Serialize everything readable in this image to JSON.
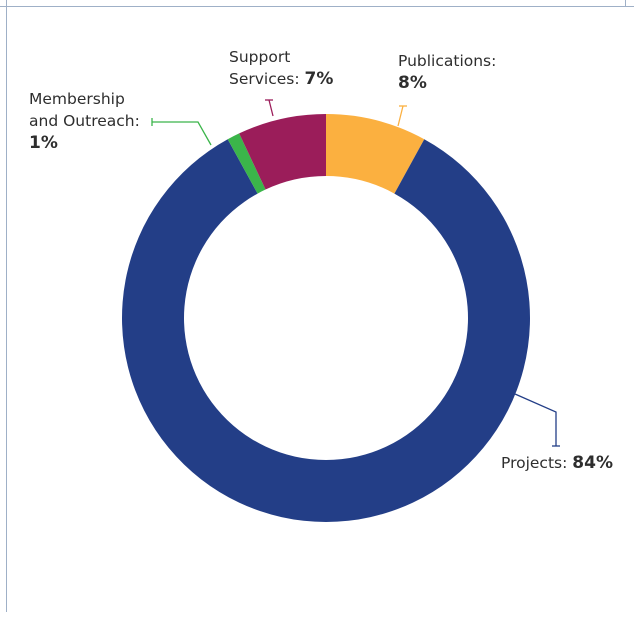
{
  "chart_data": {
    "type": "pie",
    "categories": [
      "Projects",
      "Publications",
      "Support Services",
      "Membership and Outreach"
    ],
    "values": [
      84,
      8,
      7,
      1
    ],
    "colors": [
      "#233e87",
      "#fbb040",
      "#9b1d5a",
      "#3bb54a"
    ],
    "labels": [
      {
        "line1": "Projects:",
        "line2": "",
        "pct": "84%"
      },
      {
        "line1": "Publications:",
        "line2": "",
        "pct": "8%"
      },
      {
        "line1": "Support",
        "line2": "Services:",
        "pct": "7%"
      },
      {
        "line1": "Membership",
        "line2": "and Outreach:",
        "pct": "1%"
      }
    ]
  }
}
